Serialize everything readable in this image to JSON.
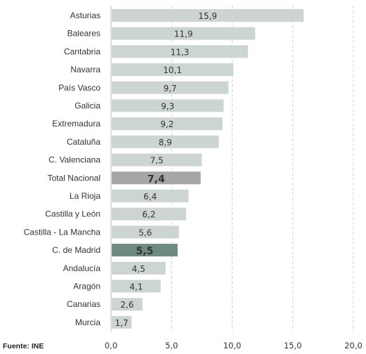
{
  "chart_data": {
    "type": "bar",
    "orientation": "horizontal",
    "categories": [
      "Asturias",
      "Baleares",
      "Cantabria",
      "Navarra",
      "País Vasco",
      "Galicia",
      "Extremadura",
      "Cataluña",
      "C. Valenciana",
      "Total Nacional",
      "La Rioja",
      "Castilla y León",
      "Castilla - La Mancha",
      "C. de Madrid",
      "Andalucía",
      "Aragón",
      "Canarias",
      "Murcia"
    ],
    "values": [
      15.9,
      11.9,
      11.3,
      10.1,
      9.7,
      9.3,
      9.2,
      8.9,
      7.5,
      7.4,
      6.4,
      6.2,
      5.6,
      5.5,
      4.5,
      4.1,
      2.6,
      1.7
    ],
    "value_labels": [
      "15,9",
      "11,9",
      "11,3",
      "10,1",
      "9,7",
      "9,3",
      "9,2",
      "8,9",
      "7,5",
      "7,4",
      "6,4",
      "6,2",
      "5,6",
      "5,5",
      "4,5",
      "4,1",
      "2,6",
      "1,7"
    ],
    "highlight": {
      "Total Nacional": "#a6a6a6",
      "C. de Madrid": "#6e8b80"
    },
    "bar_color": "#cdd5d2",
    "xlim": [
      0,
      20
    ],
    "xticks": [
      0,
      5,
      10,
      15,
      20
    ],
    "xtick_labels": [
      "0,0",
      "5,0",
      "10,0",
      "15,0",
      "20,0"
    ],
    "grid": "vertical dashed",
    "title": "",
    "xlabel": "",
    "ylabel": ""
  },
  "source": "Fuente: INE"
}
